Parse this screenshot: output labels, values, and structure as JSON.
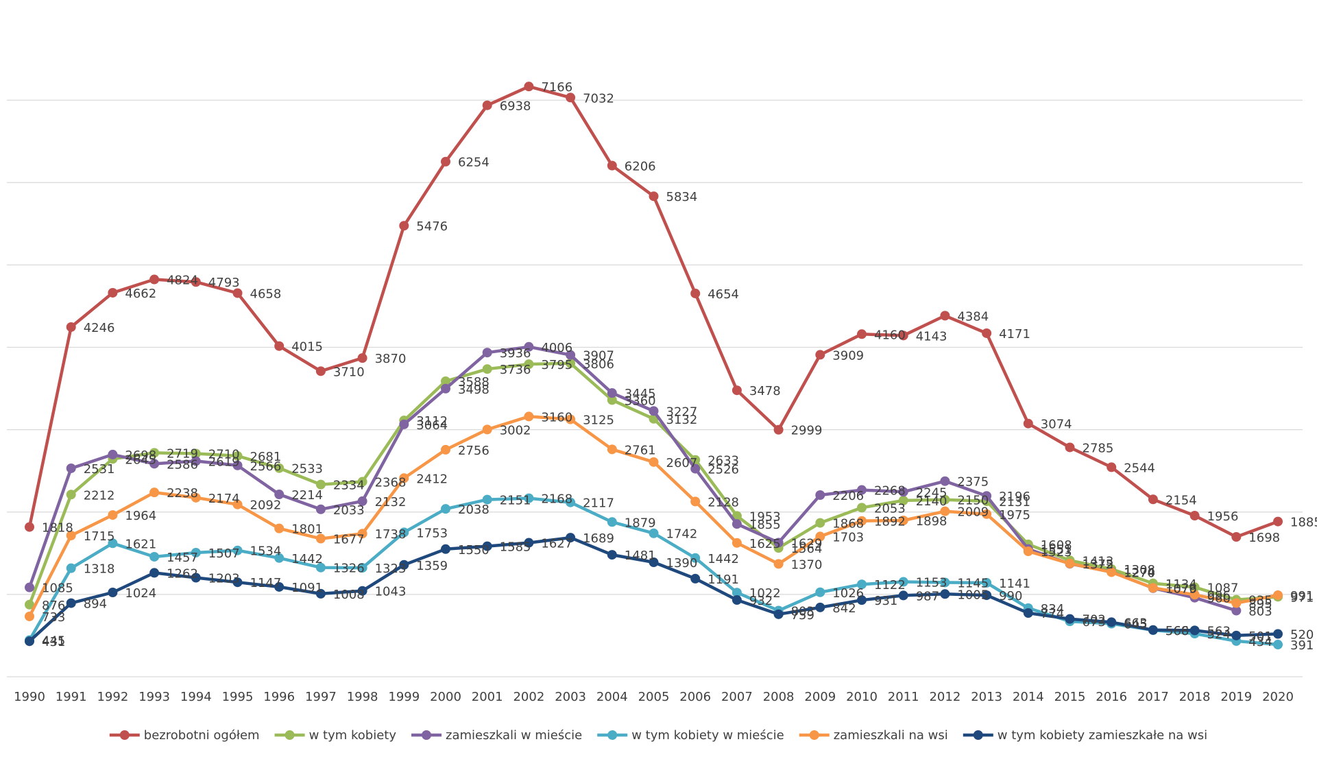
{
  "chart_data": {
    "type": "line",
    "categories": [
      "1990",
      "1991",
      "1992",
      "1993",
      "1994",
      "1995",
      "1996",
      "1997",
      "1998",
      "1999",
      "2000",
      "2001",
      "2002",
      "2003",
      "2004",
      "2005",
      "2006",
      "2007",
      "2008",
      "2009",
      "2010",
      "2011",
      "2012",
      "2013",
      "2014",
      "2015",
      "2016",
      "2017",
      "2018",
      "2019",
      "2020"
    ],
    "ylim": [
      0,
      8000
    ],
    "yticks": [
      0,
      1000,
      2000,
      3000,
      4000,
      5000,
      6000,
      7000
    ],
    "show_ytick_labels": false,
    "grid": true,
    "legend": "bottom",
    "data_labels": true,
    "series": [
      {
        "name": "bezrobotni ogółem",
        "color": "#c0504d",
        "values": [
          1818,
          4246,
          4662,
          4824,
          4793,
          4658,
          4015,
          3710,
          3870,
          5476,
          6254,
          6938,
          7166,
          7032,
          6206,
          5834,
          4654,
          3478,
          2999,
          3909,
          4160,
          4143,
          4384,
          4171,
          3074,
          2785,
          2544,
          2154,
          1956,
          1698,
          1885
        ]
      },
      {
        "name": "w tym kobiety",
        "color": "#9bbb59",
        "values": [
          876,
          2212,
          2645,
          2719,
          2710,
          2681,
          2533,
          2334,
          2368,
          3112,
          3588,
          3736,
          3795,
          3806,
          3360,
          3132,
          2633,
          1953,
          1564,
          1868,
          2053,
          2140,
          2150,
          2131,
          1608,
          1413,
          1308,
          1134,
          1087,
          935,
          971
        ]
      },
      {
        "name": "zamieszkali w mieście",
        "color": "#8064a2",
        "values": [
          1085,
          2531,
          2698,
          2586,
          2619,
          2566,
          2214,
          2033,
          2132,
          3064,
          3498,
          3936,
          4006,
          3907,
          3445,
          3227,
          2526,
          1855,
          1629,
          2206,
          2268,
          2245,
          2375,
          2196,
          1551,
          1372,
          1274,
          1076,
          960,
          803,
          null
        ]
      },
      {
        "name": "w tym kobiety w mieście",
        "color": "#4bacc6",
        "values": [
          445,
          1318,
          1621,
          1457,
          1507,
          1534,
          1442,
          1326,
          1323,
          1753,
          2038,
          2151,
          2168,
          2117,
          1879,
          1742,
          1442,
          1022,
          803,
          1026,
          1122,
          1153,
          1145,
          1141,
          834,
          673,
          645,
          566,
          524,
          434,
          391
        ]
      },
      {
        "name": "zamieszkali na wsi",
        "color": "#f79646",
        "values": [
          733,
          1715,
          1964,
          2238,
          2174,
          2092,
          1801,
          1677,
          1738,
          2412,
          2756,
          3002,
          3160,
          3125,
          2761,
          2607,
          2128,
          1625,
          1370,
          1703,
          1892,
          1898,
          2009,
          1975,
          1523,
          1375,
          1270,
          1079,
          996,
          895,
          991
        ]
      },
      {
        "name": "w tym kobiety zamieszkałe na wsi",
        "color": "#1f497d",
        "values": [
          431,
          894,
          1024,
          1262,
          1203,
          1147,
          1091,
          1008,
          1043,
          1359,
          1550,
          1585,
          1627,
          1689,
          1481,
          1390,
          1191,
          932,
          759,
          842,
          931,
          987,
          1005,
          990,
          774,
          702,
          663,
          568,
          563,
          501,
          520
        ]
      }
    ]
  }
}
